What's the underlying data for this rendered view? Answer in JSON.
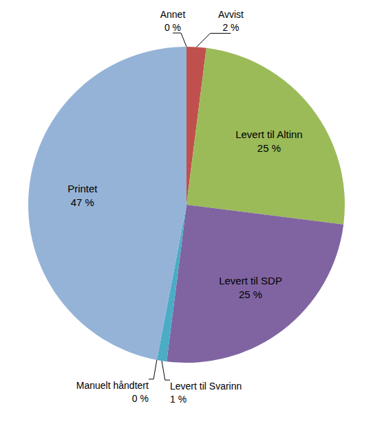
{
  "chart_data": {
    "type": "pie",
    "categories": [
      "Annet",
      "Avvist",
      "Levert til Altinn",
      "Levert til SDP",
      "Levert til Svarinn",
      "Manuelt håndtert",
      "Printet"
    ],
    "values": [
      0,
      2,
      25,
      25,
      1,
      0,
      47
    ],
    "value_labels": [
      "0 %",
      "2 %",
      "25 %",
      "25 %",
      "1 %",
      "0 %",
      "47 %"
    ],
    "colors": [
      "#4f81bd",
      "#c0504d",
      "#9bbb59",
      "#8064a2",
      "#4bacc6",
      "#f79646",
      "#95b3d7"
    ],
    "data_labels": true
  }
}
